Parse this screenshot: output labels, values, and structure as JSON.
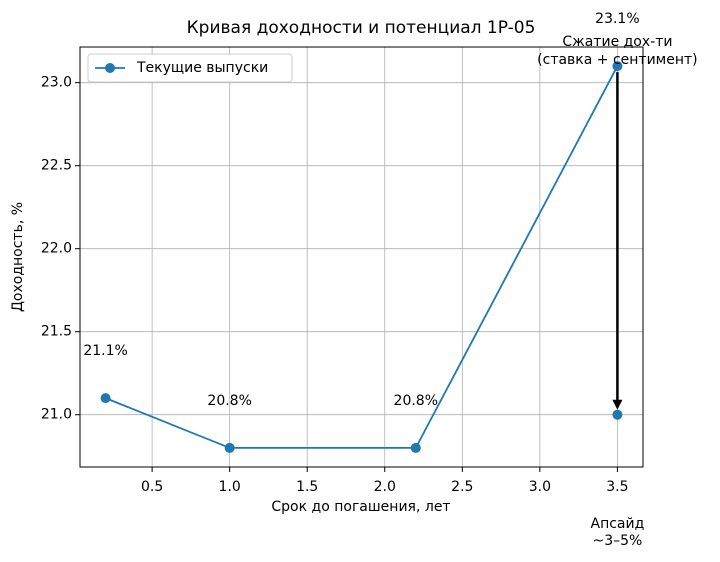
{
  "chart_data": {
    "type": "line",
    "title": "Кривая доходности и потенциал 1P-05",
    "x_label": "Срок до погашения, лет",
    "y_label": "Доходность, %",
    "x": [
      0.2,
      1.0,
      2.2,
      3.5
    ],
    "series": [
      {
        "name": "Текущие выпуски",
        "color": "#1f77b4",
        "values": [
          21.1,
          20.8,
          20.8,
          23.1
        ],
        "value_labels": [
          "21.1%",
          "20.8%",
          "20.8%",
          "23.1%"
        ]
      }
    ],
    "target": {
      "x": 3.5,
      "y": 21.0,
      "color": "#1f77b4"
    },
    "arrow": {
      "from": [
        3.5,
        23.1
      ],
      "to": [
        3.5,
        21.0
      ],
      "lines": [
        "Сжатие дох-ти",
        "(ставка + сентимент)"
      ]
    },
    "footnote": {
      "lines": [
        "Апсайд",
        "~3–5%"
      ]
    },
    "xlim": [
      0.035,
      3.665
    ],
    "ylim": [
      20.685,
      23.215
    ],
    "xticks": [
      0.5,
      {
        "value": 1.0,
        "label": "1.0"
      },
      1.5,
      {
        "value": 2.0,
        "label": "2.0"
      },
      2.5,
      {
        "value": 3.0,
        "label": "3.0"
      },
      3.5
    ],
    "yticks": [
      {
        "value": 21.0,
        "label": "21.0"
      },
      21.5,
      {
        "value": 22.0,
        "label": "22.0"
      },
      22.5,
      {
        "value": 23.0,
        "label": "23.0"
      }
    ],
    "grid": true,
    "legend": "upper-left"
  }
}
